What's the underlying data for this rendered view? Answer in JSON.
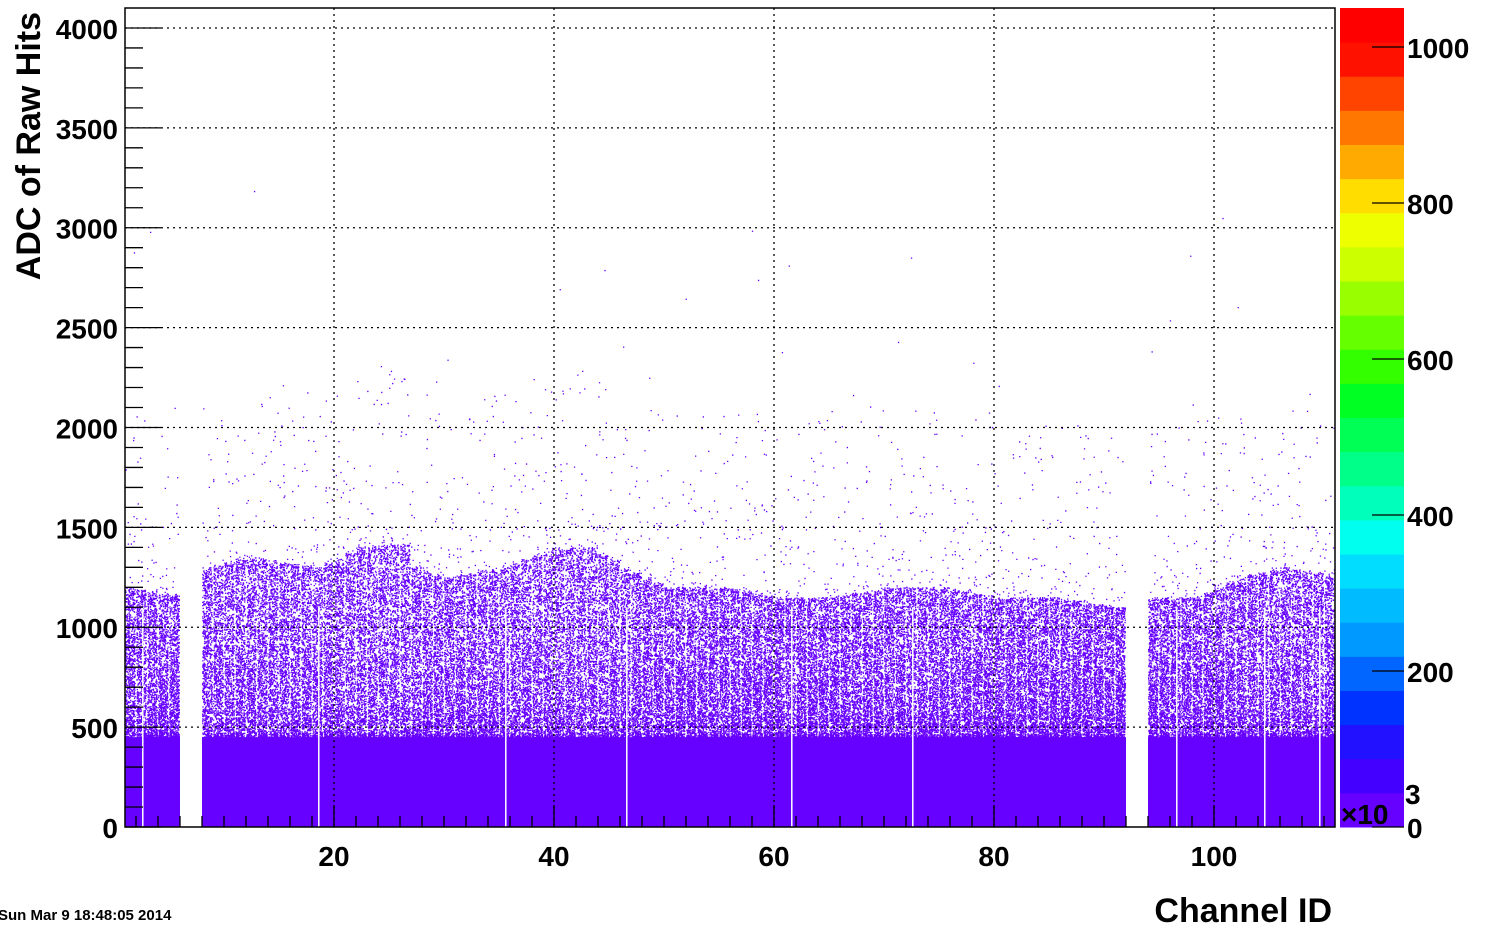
{
  "chart_data": {
    "type": "heatmap",
    "title": "",
    "xlabel": "Channel ID",
    "ylabel": "ADC of Raw Hits",
    "xlim": [
      1,
      111
    ],
    "ylim": [
      0,
      4100
    ],
    "x_ticks": [
      20,
      40,
      60,
      80,
      100
    ],
    "y_ticks": [
      0,
      500,
      1000,
      1500,
      2000,
      2500,
      3000,
      3500,
      4000
    ],
    "grid": true,
    "x_grid_values": [
      20,
      40,
      60,
      80,
      100
    ],
    "y_grid_values": [
      500,
      1000,
      1500,
      2000,
      2500,
      3000,
      3500,
      4000
    ],
    "dead_channels": [
      6,
      7,
      92,
      93
    ],
    "band_top_adc": [
      [
        1,
        1200
      ],
      [
        6,
        1150
      ],
      [
        8,
        1300
      ],
      [
        12,
        1350
      ],
      [
        18,
        1300
      ],
      [
        22,
        1400
      ],
      [
        26,
        1420
      ],
      [
        27,
        1300
      ],
      [
        30,
        1250
      ],
      [
        35,
        1300
      ],
      [
        40,
        1400
      ],
      [
        43,
        1400
      ],
      [
        46,
        1300
      ],
      [
        50,
        1200
      ],
      [
        55,
        1200
      ],
      [
        60,
        1150
      ],
      [
        65,
        1150
      ],
      [
        70,
        1200
      ],
      [
        75,
        1200
      ],
      [
        80,
        1150
      ],
      [
        85,
        1150
      ],
      [
        91,
        1100
      ],
      [
        94,
        1150
      ],
      [
        98,
        1150
      ],
      [
        102,
        1250
      ],
      [
        106,
        1300
      ],
      [
        111,
        1250
      ]
    ],
    "dense_band_top_adc": 450,
    "colorbar": {
      "min": 0,
      "max": 1050,
      "ticks": [
        0,
        200,
        400,
        600,
        800,
        1000
      ],
      "tick_labels": [
        "0",
        "200",
        "400",
        "600",
        "800",
        "1000"
      ],
      "multiplier": "×10",
      "multiplier_exponent": "3",
      "colors": [
        "#6600ff",
        "#4400ff",
        "#2211ff",
        "#0033ff",
        "#0066ff",
        "#0099ff",
        "#00bbff",
        "#00ddff",
        "#00ffee",
        "#00ffbb",
        "#00ff88",
        "#00ff55",
        "#00ff22",
        "#33ff00",
        "#66ff00",
        "#99ff00",
        "#ccff00",
        "#eeff00",
        "#ffdd00",
        "#ffaa00",
        "#ff7700",
        "#ff4400",
        "#ff1100",
        "#ff0000"
      ]
    },
    "marker_color": "#6600ff"
  },
  "footer": {
    "timestamp": "Sun Mar  9 18:48:05 2014"
  }
}
